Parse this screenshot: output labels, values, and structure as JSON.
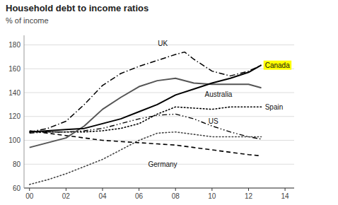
{
  "chart_data": {
    "type": "line",
    "title": "Household debt to income ratios",
    "subtitle": "% of income",
    "xlim": [
      -0.3,
      14.5
    ],
    "xticks": [
      {
        "value": 0,
        "label": "00"
      },
      {
        "value": 2,
        "label": "02"
      },
      {
        "value": 4,
        "label": "04"
      },
      {
        "value": 6,
        "label": "06"
      },
      {
        "value": 8,
        "label": "08"
      },
      {
        "value": 10,
        "label": "10"
      },
      {
        "value": 12,
        "label": "12"
      },
      {
        "value": 14,
        "label": "14"
      }
    ],
    "ylim": [
      60,
      188
    ],
    "yticks": [
      60,
      80,
      100,
      120,
      140,
      160,
      180
    ],
    "grid": true,
    "series": [
      {
        "color": "#000000",
        "line_style": "solid",
        "x": [
          0,
          1,
          2,
          3,
          4,
          5,
          6,
          7,
          8,
          9,
          10,
          11,
          12,
          12.7
        ],
        "values": [
          107,
          108,
          109,
          110,
          114,
          118,
          124,
          130,
          138,
          143,
          148,
          152,
          157,
          163
        ]
      },
      {
        "color": "#555555",
        "line_style": "solid",
        "x": [
          0,
          1,
          2,
          3,
          4,
          5,
          6,
          7,
          8,
          9,
          10,
          11,
          12,
          12.7
        ],
        "values": [
          94,
          98,
          102,
          112,
          126,
          136,
          145,
          150,
          152,
          148,
          147,
          147,
          147,
          144
        ]
      },
      {
        "color": "#000000",
        "line_style": "dashdot",
        "x": [
          0,
          1,
          2,
          3,
          4,
          5,
          6,
          7,
          8,
          8.5,
          9,
          10,
          11,
          12,
          12.7
        ],
        "values": [
          107,
          110,
          116,
          130,
          146,
          156,
          162,
          167,
          172,
          174,
          168,
          158,
          154,
          158,
          163
        ]
      },
      {
        "color": "#000000",
        "line_style": "dashdotdot",
        "x": [
          0,
          1,
          2,
          3,
          4,
          5,
          6,
          7,
          8,
          9,
          10,
          11,
          12,
          12.7
        ],
        "values": [
          106,
          107,
          107,
          108,
          110,
          114,
          118,
          121,
          122,
          118,
          112,
          107,
          103,
          101
        ]
      },
      {
        "color": "#000000",
        "line_style": "dotted",
        "x": [
          0,
          1,
          2,
          3,
          4,
          5,
          6,
          7,
          8,
          9,
          10,
          11,
          12,
          12.7
        ],
        "values": [
          107,
          107,
          107,
          107,
          108,
          110,
          114,
          122,
          128,
          127,
          126,
          128,
          128,
          128
        ]
      },
      {
        "color": "#000000",
        "line_style": "dashed",
        "x": [
          0,
          1,
          2,
          3,
          4,
          5,
          6,
          7,
          8,
          9,
          10,
          11,
          12,
          12.7
        ],
        "values": [
          108,
          106,
          104,
          102,
          100,
          99,
          98,
          97,
          96,
          94,
          92,
          90,
          88,
          87
        ]
      },
      {
        "color": "#444444",
        "line_style": "dotted",
        "x": [
          0,
          1,
          2,
          3,
          4,
          5,
          6,
          7,
          8,
          9,
          10,
          11,
          12,
          12.7
        ],
        "values": [
          63,
          67,
          72,
          78,
          84,
          92,
          100,
          106,
          107,
          105,
          103,
          103,
          103,
          103
        ]
      }
    ],
    "annotations": [
      {
        "text": "UK",
        "x": 7.3,
        "y": 178
      },
      {
        "text": "Australia",
        "x": 9.6,
        "y": 142
      },
      {
        "text": "US",
        "x": 9.8,
        "y": 113
      },
      {
        "text": "Spain",
        "x": 12.9,
        "y": 128
      },
      {
        "text": "Germany",
        "x": 6.5,
        "y": 83
      },
      {
        "text": "Canada",
        "x": 12.9,
        "y": 163,
        "color": "#ffff00"
      }
    ]
  }
}
